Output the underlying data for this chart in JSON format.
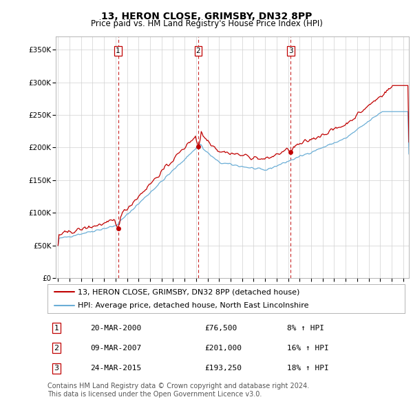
{
  "title": "13, HERON CLOSE, GRIMSBY, DN32 8PP",
  "subtitle": "Price paid vs. HM Land Registry's House Price Index (HPI)",
  "ylabel_ticks": [
    "£0",
    "£50K",
    "£100K",
    "£150K",
    "£200K",
    "£250K",
    "£300K",
    "£350K"
  ],
  "ytick_values": [
    0,
    50000,
    100000,
    150000,
    200000,
    250000,
    300000,
    350000
  ],
  "ylim": [
    0,
    370000
  ],
  "xlim_start": 1994.8,
  "xlim_end": 2025.5,
  "sale_dates": [
    2000.22,
    2007.19,
    2015.23
  ],
  "sale_prices": [
    76500,
    201000,
    193250
  ],
  "sale_labels": [
    "1",
    "2",
    "3"
  ],
  "sale_label_info": [
    {
      "label": "1",
      "date": "20-MAR-2000",
      "price": "£76,500",
      "pct": "8% ↑ HPI"
    },
    {
      "label": "2",
      "date": "09-MAR-2007",
      "price": "£201,000",
      "pct": "16% ↑ HPI"
    },
    {
      "label": "3",
      "date": "24-MAR-2015",
      "price": "£193,250",
      "pct": "18% ↑ HPI"
    }
  ],
  "hpi_line_color": "#6BAED6",
  "sale_line_color": "#C00000",
  "vline_color": "#C00000",
  "grid_color": "#D0D0D0",
  "background_color": "#FFFFFF",
  "legend_line1": "13, HERON CLOSE, GRIMSBY, DN32 8PP (detached house)",
  "legend_line2": "HPI: Average price, detached house, North East Lincolnshire",
  "footnote1": "Contains HM Land Registry data © Crown copyright and database right 2024.",
  "footnote2": "This data is licensed under the Open Government Licence v3.0.",
  "title_fontsize": 10,
  "subtitle_fontsize": 8.5,
  "tick_fontsize": 7.5,
  "legend_fontsize": 8,
  "table_fontsize": 8,
  "footnote_fontsize": 7
}
